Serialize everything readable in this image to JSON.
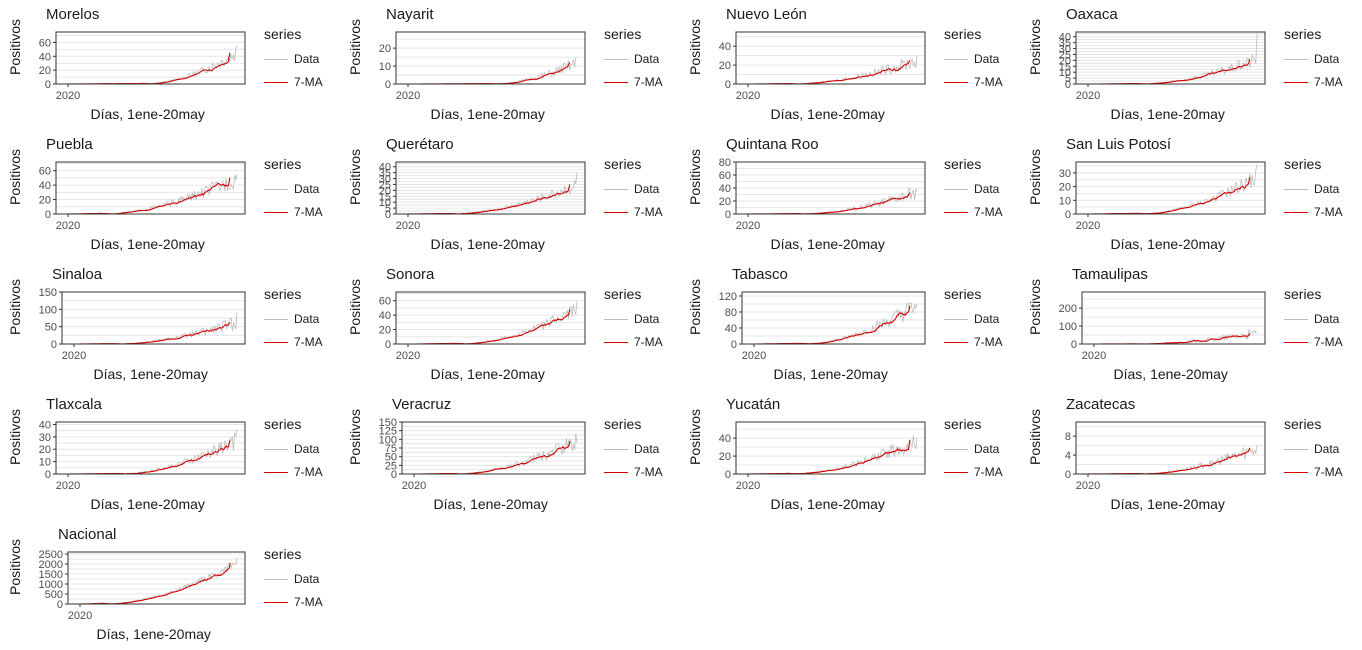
{
  "legend": {
    "title": "series",
    "data_label": "Data",
    "ma_label": "7-MA"
  },
  "colors": {
    "data": "#bdbdbd",
    "ma": "#d40000",
    "grid": "#e6e6e6",
    "frame": "#333333"
  },
  "x_axis_label": "Días, 1ene-20may",
  "y_axis_label": "Positivos",
  "x_tick": "2020",
  "chart_data": [
    {
      "type": "line",
      "title": "Morelos",
      "yticks": [
        0,
        20,
        40,
        60
      ],
      "ylim": [
        0,
        75
      ],
      "data_end": 55,
      "ma_end": 45,
      "start_frac": 0.45,
      "noise": 0.28
    },
    {
      "type": "line",
      "title": "Nayarit",
      "yticks": [
        0,
        10,
        20
      ],
      "ylim": [
        0,
        29
      ],
      "data_end": 15,
      "ma_end": 12,
      "start_frac": 0.5,
      "noise": 0.35
    },
    {
      "type": "line",
      "title": "Nuevo León",
      "yticks": [
        0,
        20,
        40
      ],
      "ylim": [
        0,
        55
      ],
      "data_end": 30,
      "ma_end": 25,
      "start_frac": 0.25,
      "noise": 0.35
    },
    {
      "type": "line",
      "title": "Oaxaca",
      "yticks": [
        0,
        5,
        10,
        15,
        20,
        25,
        30,
        35,
        40
      ],
      "ylim": [
        0,
        44
      ],
      "data_end": 43,
      "ma_end": 21,
      "start_frac": 0.3,
      "noise": 0.3
    },
    {
      "type": "line",
      "title": "Puebla",
      "yticks": [
        0,
        20,
        40,
        60
      ],
      "ylim": [
        0,
        72
      ],
      "data_end": 55,
      "ma_end": 50,
      "start_frac": 0.2,
      "noise": 0.28
    },
    {
      "type": "line",
      "title": "Querétaro",
      "yticks": [
        0,
        5,
        10,
        15,
        20,
        25,
        30,
        35,
        40
      ],
      "ylim": [
        0,
        44
      ],
      "data_end": 35,
      "ma_end": 25,
      "start_frac": 0.25,
      "noise": 0.25
    },
    {
      "type": "line",
      "title": "Quintana Roo",
      "yticks": [
        0,
        20,
        40,
        60,
        80
      ],
      "ylim": [
        0,
        80
      ],
      "data_end": 35,
      "ma_end": 33,
      "start_frac": 0.3,
      "noise": 0.35
    },
    {
      "type": "line",
      "title": "San Luis Potosí",
      "yticks": [
        0,
        10,
        20,
        30
      ],
      "ylim": [
        0,
        38
      ],
      "data_end": 36,
      "ma_end": 27,
      "start_frac": 0.3,
      "noise": 0.25
    },
    {
      "type": "line",
      "title": "Sinaloa",
      "yticks": [
        0,
        50,
        100,
        150
      ],
      "ylim": [
        0,
        150
      ],
      "data_end": 90,
      "ma_end": 62,
      "start_frac": 0.25,
      "noise": 0.35
    },
    {
      "type": "line",
      "title": "Sonora",
      "yticks": [
        0,
        20,
        40,
        60
      ],
      "ylim": [
        0,
        72
      ],
      "data_end": 60,
      "ma_end": 48,
      "start_frac": 0.3,
      "noise": 0.25
    },
    {
      "type": "line",
      "title": "Tabasco",
      "yticks": [
        0,
        40,
        80,
        120
      ],
      "ylim": [
        0,
        130
      ],
      "data_end": 100,
      "ma_end": 95,
      "start_frac": 0.3,
      "noise": 0.3
    },
    {
      "type": "line",
      "title": "Tamaulipas",
      "yticks": [
        0,
        100,
        200
      ],
      "ylim": [
        0,
        290
      ],
      "data_end": 60,
      "ma_end": 60,
      "start_frac": 0.25,
      "noise": 0.5
    },
    {
      "type": "line",
      "title": "Tlaxcala",
      "yticks": [
        0,
        10,
        20,
        30,
        40
      ],
      "ylim": [
        0,
        42
      ],
      "data_end": 36,
      "ma_end": 27,
      "start_frac": 0.3,
      "noise": 0.3
    },
    {
      "type": "line",
      "title": "Veracruz",
      "yticks": [
        0,
        25,
        50,
        75,
        100,
        125,
        150
      ],
      "ylim": [
        0,
        150
      ],
      "data_end": 90,
      "ma_end": 95,
      "start_frac": 0.25,
      "noise": 0.3
    },
    {
      "type": "line",
      "title": "Yucatán",
      "yticks": [
        0,
        20,
        40
      ],
      "ylim": [
        0,
        58
      ],
      "data_end": 40,
      "ma_end": 38,
      "start_frac": 0.25,
      "noise": 0.3
    },
    {
      "type": "line",
      "title": "Zacatecas",
      "yticks": [
        0,
        4,
        8
      ],
      "ylim": [
        0,
        11
      ],
      "data_end": 6,
      "ma_end": 5.5,
      "start_frac": 0.3,
      "noise": 0.35
    },
    {
      "type": "line",
      "title": "Nacional",
      "yticks": [
        0,
        500,
        1000,
        1500,
        2000,
        2500
      ],
      "ylim": [
        0,
        2600
      ],
      "data_end": 2300,
      "ma_end": 2050,
      "start_frac": 0.15,
      "noise": 0.12
    }
  ]
}
